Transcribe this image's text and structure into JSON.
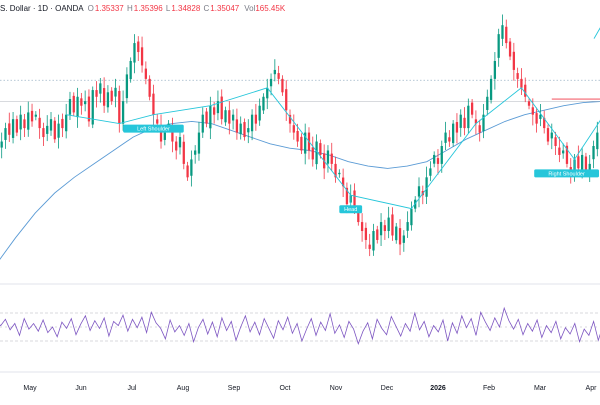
{
  "legend": {
    "symbol": "S. Dollar · 1D · OANDA",
    "o_label": "O",
    "o": "1.35337",
    "h_label": "H",
    "h": "1.35396",
    "l_label": "L",
    "l": "1.34828",
    "c_label": "C",
    "c": "1.35047",
    "vol_label": "Vol",
    "vol": "165.45K"
  },
  "colors": {
    "up": "#089981",
    "down": "#f23645",
    "ma": "#5b9bd5",
    "pattern": "#26c6da",
    "rsi": "#7e57c2",
    "resistance": "#f23645"
  },
  "chart_data": [
    {
      "type": "candlestick",
      "title": "",
      "x_ticks": [
        "May",
        "Jun",
        "Jul",
        "Aug",
        "Sep",
        "Oct",
        "Nov",
        "Dec",
        "2026",
        "Feb",
        "Mar",
        "Apr"
      ],
      "close_path": [
        1.3515,
        1.3525,
        1.3555,
        1.354,
        1.3575,
        1.3545,
        1.3585,
        1.3555,
        1.359,
        1.357,
        1.3585,
        1.3555,
        1.3535,
        1.356,
        1.3575,
        1.353,
        1.3565,
        1.3555,
        1.3585,
        1.362,
        1.359,
        1.3625,
        1.3605,
        1.3615,
        1.357,
        1.364,
        1.3625,
        1.3655,
        1.3605,
        1.3635,
        1.3615,
        1.3645,
        1.3565,
        1.3615,
        1.3675,
        1.3705,
        1.3745,
        1.3725,
        1.3695,
        1.3665,
        1.3625,
        1.3585,
        1.3565,
        1.3525,
        1.3545,
        1.3565,
        1.3525,
        1.3505,
        1.3535,
        1.3475,
        1.3445,
        1.3485,
        1.3505,
        1.3545,
        1.3585,
        1.3565,
        1.3605,
        1.3585,
        1.3615,
        1.3575,
        1.3595,
        1.3565,
        1.3585,
        1.3545,
        1.3565,
        1.3535,
        1.3555,
        1.3585,
        1.3565,
        1.3605,
        1.3625,
        1.3645,
        1.3665,
        1.3685,
        1.3665,
        1.3635,
        1.3595,
        1.3565,
        1.3545,
        1.3525,
        1.3505,
        1.3545,
        1.3505,
        1.3485,
        1.3525,
        1.3495,
        1.3465,
        1.3505,
        1.3475,
        1.3445,
        1.3455,
        1.3425,
        1.3385,
        1.3405,
        1.3375,
        1.3345,
        1.3325,
        1.3305,
        1.3285,
        1.3325,
        1.3305,
        1.3345,
        1.3325,
        1.3355,
        1.3315,
        1.3335,
        1.3295,
        1.3315,
        1.3345,
        1.3375,
        1.3395,
        1.3425,
        1.3405,
        1.3445,
        1.3465,
        1.3495,
        1.3475,
        1.3515,
        1.3545,
        1.3525,
        1.3565,
        1.3545,
        1.3585,
        1.3555,
        1.3605,
        1.3585,
        1.3565,
        1.3545,
        1.3585,
        1.3625,
        1.3665,
        1.3705,
        1.3765,
        1.3785,
        1.3745,
        1.3715,
        1.3685,
        1.3665,
        1.3645,
        1.3625,
        1.3605,
        1.3585,
        1.3565,
        1.3585,
        1.3555,
        1.3525,
        1.3545,
        1.3515,
        1.3495,
        1.3505,
        1.3475,
        1.3455,
        1.3485,
        1.3465,
        1.3495,
        1.3455,
        1.3475,
        1.3515,
        1.3545,
        1.3575
      ],
      "moving_average": [
        1.325,
        1.331,
        1.3365,
        1.341,
        1.3445,
        1.3475,
        1.3505,
        1.3535,
        1.3555,
        1.3565,
        1.357,
        1.3565,
        1.355,
        1.3535,
        1.352,
        1.351,
        1.3505,
        1.3495,
        1.348,
        1.347,
        1.3465,
        1.347,
        1.348,
        1.3505,
        1.353,
        1.355,
        1.357,
        1.3585,
        1.3595,
        1.3605,
        1.3612,
        1.3615
      ],
      "resistance_level": 1.3615,
      "upper_dotted_level": 1.3662,
      "pattern_labels": [
        "Left Shoulder",
        "Head",
        "Right Shoulder"
      ],
      "ylim": [
        1.322,
        1.381
      ]
    },
    {
      "type": "line",
      "title": "",
      "name": "",
      "values": [
        58,
        52,
        61,
        46,
        55,
        38,
        62,
        47,
        55,
        44,
        60,
        42,
        50,
        36,
        57,
        48,
        62,
        39,
        54,
        66,
        45,
        59,
        48,
        63,
        37,
        58,
        52,
        67,
        44,
        61,
        49,
        64,
        42,
        71,
        56,
        48,
        33,
        60,
        43,
        52,
        38,
        55,
        29,
        49,
        61,
        40,
        57,
        36,
        63,
        45,
        58,
        31,
        50,
        66,
        43,
        57,
        39,
        62,
        48,
        34,
        59,
        46,
        64,
        41,
        55,
        30,
        47,
        62,
        38,
        57,
        45,
        69,
        41,
        53,
        35,
        58,
        47,
        26,
        44,
        56,
        33,
        61,
        48,
        39,
        65,
        51,
        37,
        55,
        44,
        70,
        46,
        58,
        36,
        52,
        43,
        60,
        30,
        56,
        41,
        66,
        49,
        62,
        38,
        71,
        57,
        45,
        63,
        50,
        77,
        59,
        47,
        61,
        39,
        55,
        44,
        60,
        35,
        52,
        42,
        58,
        33,
        49,
        40,
        55,
        29,
        47,
        38,
        58,
        31,
        52
      ],
      "ylim": [
        0,
        100
      ],
      "levels": [
        70,
        50,
        30
      ]
    }
  ]
}
